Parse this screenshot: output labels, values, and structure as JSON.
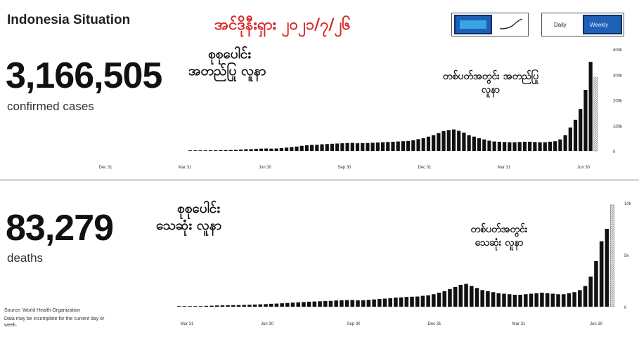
{
  "header": {
    "title": "Indonesia Situation",
    "date_annotation": "အင်ဒိုနီးရှား ၂၀၂၁/၇/၂၆"
  },
  "toggles": {
    "chart_mode": {
      "options": [
        "area-icon",
        "line-icon"
      ],
      "selected": "area-icon"
    },
    "period": {
      "options": [
        "Daily",
        "Weekly"
      ],
      "selected": "Weekly"
    }
  },
  "cases": {
    "total": "3,166,505",
    "label": "confirmed cases",
    "annotation_total": [
      "စုစုပေါင်း",
      "အတည်ပြု လူနာ"
    ],
    "annotation_weekly": [
      "တစ်ပတ်အတွင်း အတည်ပြု",
      "လူနာ"
    ]
  },
  "deaths": {
    "total": "83,279",
    "label": "deaths",
    "annotation_total": [
      "စုစုပေါင်း",
      "သေဆုံး လူနာ"
    ],
    "annotation_weekly": [
      "တစ်ပတ်အတွင်း",
      "သေဆုံး လူနာ"
    ]
  },
  "footer": {
    "source": "Source: World Health Organization",
    "note": "Data may be incomplete for the current day or week."
  },
  "colors": {
    "bar": "#111111",
    "hatch": "#9a9a9a",
    "accent": "#d8262a",
    "toggle_active": "#1e5fb8"
  },
  "chart_data": [
    {
      "type": "bar",
      "title": "confirmed cases",
      "x_tick_labels": [
        "Dec 31",
        "Mar 31",
        "Jun 30",
        "Sep 30",
        "Dec 31",
        "Mar 31",
        "Jun 30"
      ],
      "y_tick_labels": [
        "400k",
        "300k",
        "200k",
        "100k",
        "0"
      ],
      "ylim": [
        0,
        400000
      ],
      "values": [
        100,
        300,
        700,
        1200,
        1800,
        2500,
        3000,
        3200,
        3500,
        4000,
        5000,
        6500,
        7000,
        8000,
        9000,
        9500,
        9000,
        9500,
        11000,
        13000,
        15000,
        17000,
        20000,
        22000,
        23500,
        24000,
        26000,
        27000,
        28000,
        29000,
        30000,
        31000,
        31500,
        30000,
        30500,
        31000,
        32000,
        33000,
        34000,
        35000,
        36000,
        37000,
        38000,
        39000,
        42000,
        46000,
        50000,
        56000,
        62000,
        70000,
        78000,
        82000,
        84000,
        79000,
        72000,
        62000,
        56000,
        50000,
        45000,
        40000,
        37000,
        36000,
        35000,
        34000,
        34000,
        35000,
        36000,
        36000,
        35000,
        34000,
        34000,
        36000,
        38000,
        45000,
        62000,
        92000,
        122000,
        165000,
        240000,
        350000
      ],
      "partial_last_value": 290000,
      "grid": false,
      "legend": "none"
    },
    {
      "type": "bar",
      "title": "deaths",
      "x_tick_labels": [
        "Mar 31",
        "Jun 30",
        "Sep 30",
        "Dec 31",
        "Mar 31",
        "Jun 30"
      ],
      "y_tick_labels": [
        "10k",
        "5k",
        "0"
      ],
      "ylim": [
        0,
        10000
      ],
      "values": [
        2,
        5,
        15,
        30,
        50,
        80,
        100,
        120,
        130,
        140,
        150,
        160,
        170,
        190,
        210,
        230,
        250,
        280,
        300,
        330,
        360,
        390,
        420,
        450,
        480,
        500,
        520,
        540,
        560,
        600,
        620,
        640,
        650,
        620,
        630,
        660,
        700,
        740,
        780,
        820,
        880,
        900,
        940,
        960,
        980,
        1050,
        1100,
        1200,
        1350,
        1500,
        1700,
        1900,
        2100,
        2200,
        2000,
        1800,
        1600,
        1500,
        1400,
        1300,
        1250,
        1200,
        1150,
        1150,
        1200,
        1250,
        1300,
        1350,
        1300,
        1250,
        1200,
        1200,
        1300,
        1400,
        1600,
        2000,
        2900,
        4400,
        6300,
        7500
      ],
      "partial_last_value": 9800,
      "grid": false,
      "legend": "none"
    }
  ]
}
